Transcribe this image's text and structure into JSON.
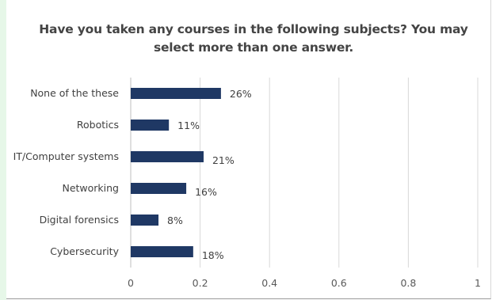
{
  "chart_data": {
    "type": "bar",
    "orientation": "horizontal",
    "title": "Have you taken any courses in the following subjects? You may select more than one answer.",
    "categories": [
      "None of the these",
      "Robotics",
      "IT/Computer systems",
      "Networking",
      "Digital forensics",
      "Cybersecurity"
    ],
    "values": [
      0.26,
      0.11,
      0.21,
      0.16,
      0.08,
      0.18
    ],
    "value_labels": [
      "26%",
      "11%",
      "21%",
      "16%",
      "8%",
      "18%"
    ],
    "xlim": [
      0,
      1
    ],
    "xticks": [
      0,
      0.2,
      0.4,
      0.6,
      0.8,
      1
    ],
    "xtick_labels": [
      "0",
      "0.2",
      "0.4",
      "0.6",
      "0.8",
      "1"
    ],
    "grid": "vertical",
    "legend": "none",
    "bar_color": "#1f3864",
    "gridline_color": "#d9d9d9"
  }
}
